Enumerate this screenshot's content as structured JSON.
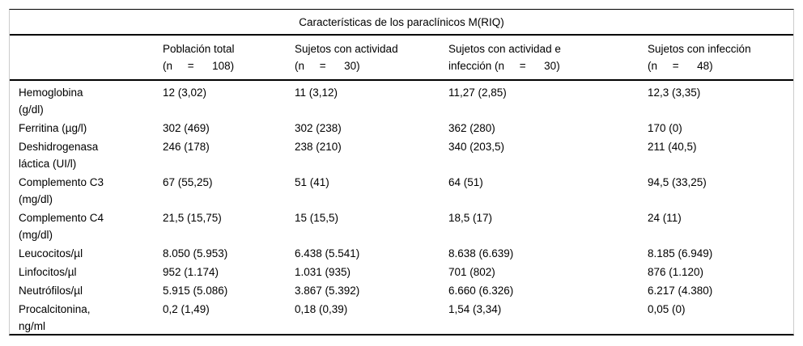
{
  "table": {
    "title": "Características de los paraclínicos M(RIQ)",
    "columns": [
      "Población total\n(n     =      108)",
      "Sujetos con actividad\n(n     =      30)",
      "Sujetos con actividad e\ninfección (n     =      30)",
      "Sujetos con infección\n(n     =      48)"
    ],
    "rows": [
      {
        "label": "Hemoglobina\n(g/dl)",
        "values": [
          "12 (3,02)",
          "11 (3,12)",
          "11,27 (2,85)",
          "12,3 (3,35)"
        ]
      },
      {
        "label": "Ferritina (µg/l)",
        "values": [
          "302 (469)",
          "302 (238)",
          "362 (280)",
          "170 (0)"
        ]
      },
      {
        "label": "Deshidrogenasa\nláctica (UI/l)",
        "values": [
          "246 (178)",
          "238 (210)",
          "340 (203,5)",
          "211 (40,5)"
        ]
      },
      {
        "label": "Complemento C3\n(mg/dl)",
        "values": [
          "67 (55,25)",
          "51 (41)",
          "64 (51)",
          "94,5 (33,25)"
        ]
      },
      {
        "label": "Complemento C4\n(mg/dl)",
        "values": [
          "21,5 (15,75)",
          "15 (15,5)",
          "18,5 (17)",
          "24 (11)"
        ]
      },
      {
        "label": "Leucocitos/µl",
        "values": [
          "8.050 (5.953)",
          "6.438 (5.541)",
          "8.638 (6.639)",
          "8.185 (6.949)"
        ]
      },
      {
        "label": "Linfocitos/µl",
        "values": [
          "952 (1.174)",
          "1.031 (935)",
          "701 (802)",
          "876 (1.120)"
        ]
      },
      {
        "label": "Neutrófilos/µl",
        "values": [
          "5.915 (5.086)",
          "3.867 (5.392)",
          "6.660 (6.326)",
          "6.217 (4.380)"
        ]
      },
      {
        "label": "Procalcitonina,\nng/ml",
        "values": [
          "0,2 (1,49)",
          "0,18 (0,39)",
          "1,54 (3,34)",
          "0,05 (0)"
        ]
      }
    ]
  }
}
